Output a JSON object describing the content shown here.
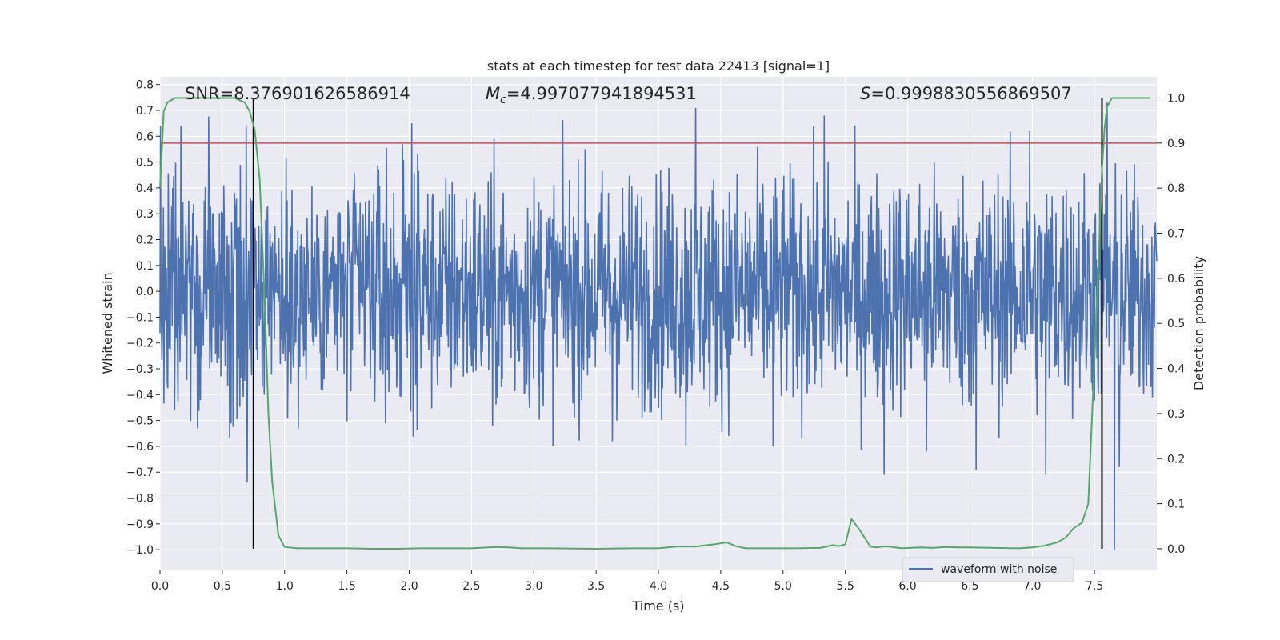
{
  "chart_data": {
    "type": "line",
    "title": "stats at each timestep for test data 22413 [signal=1]",
    "xlabel": "Time (s)",
    "ylabel": "Whitened strain",
    "y2label": "Detection probability",
    "xlim": [
      0.0,
      8.0
    ],
    "ylim": [
      -1.08,
      0.83
    ],
    "y2lim": [
      -0.048,
      1.047
    ],
    "x_ticks": [
      0.0,
      0.5,
      1.0,
      1.5,
      2.0,
      2.5,
      3.0,
      3.5,
      4.0,
      4.5,
      5.0,
      5.5,
      6.0,
      6.5,
      7.0,
      7.5
    ],
    "x_tick_labels": [
      "0.0",
      "0.5",
      "1.0",
      "1.5",
      "2.0",
      "2.5",
      "3.0",
      "3.5",
      "4.0",
      "4.5",
      "5.0",
      "5.5",
      "6.0",
      "6.5",
      "7.0",
      "7.5"
    ],
    "y_ticks": [
      -1.0,
      -0.9,
      -0.8,
      -0.7,
      -0.6,
      -0.5,
      -0.4,
      -0.3,
      -0.2,
      -0.1,
      0.0,
      0.1,
      0.2,
      0.3,
      0.4,
      0.5,
      0.6,
      0.7,
      0.8
    ],
    "y_tick_labels": [
      "−1.0",
      "−0.9",
      "−0.8",
      "−0.7",
      "−0.6",
      "−0.5",
      "−0.4",
      "−0.3",
      "−0.2",
      "−0.1",
      "0.0",
      "0.1",
      "0.2",
      "0.3",
      "0.4",
      "0.5",
      "0.6",
      "0.7",
      "0.8"
    ],
    "y2_ticks": [
      0.0,
      0.1,
      0.2,
      0.3,
      0.4,
      0.5,
      0.6,
      0.7,
      0.8,
      0.9,
      1.0
    ],
    "y2_tick_labels": [
      "0.0",
      "0.1",
      "0.2",
      "0.3",
      "0.4",
      "0.5",
      "0.6",
      "0.7",
      "0.8",
      "0.9",
      "1.0"
    ],
    "grid": true,
    "legend": {
      "entries": [
        "waveform with noise"
      ],
      "placement": "lower-right"
    },
    "annotations": {
      "snr": "SNR=8.376901626586914",
      "mc_symbol": "M",
      "mc_subscript": "c",
      "mc_value": "=4.997077941894531",
      "s_symbol": "S",
      "s_value": "=0.9998830556869507"
    },
    "threshold_line": {
      "y2": 0.9,
      "color": "#c44e52"
    },
    "vlines_x": [
      0.75,
      7.56
    ],
    "waveform": {
      "name": "waveform with noise",
      "color": "#4c72b0",
      "samples": 2048,
      "typical_amplitude": 0.23,
      "peaks": [
        [
          0.1,
          0.4
        ],
        [
          0.17,
          0.64
        ],
        [
          0.3,
          -0.53
        ],
        [
          0.69,
          0.64
        ],
        [
          0.7,
          -0.74
        ],
        [
          2.02,
          0.65
        ],
        [
          2.67,
          -0.52
        ],
        [
          3.63,
          -0.58
        ],
        [
          4.22,
          -0.6
        ],
        [
          4.3,
          0.71
        ],
        [
          4.92,
          -0.6
        ],
        [
          5.33,
          0.68
        ],
        [
          5.81,
          -0.71
        ],
        [
          6.15,
          -0.62
        ],
        [
          6.55,
          -0.69
        ],
        [
          6.98,
          0.62
        ],
        [
          7.11,
          -0.71
        ],
        [
          7.6,
          0.73
        ],
        [
          7.66,
          -1.0
        ],
        [
          7.7,
          -0.68
        ]
      ]
    },
    "series": [
      {
        "name": "detection probability",
        "color": "#55a868",
        "x": [
          0.0,
          0.03,
          0.06,
          0.12,
          0.2,
          0.3,
          0.45,
          0.6,
          0.68,
          0.72,
          0.76,
          0.8,
          0.84,
          0.87,
          0.9,
          0.95,
          1.0,
          1.1,
          1.3,
          1.5,
          1.7,
          1.9,
          2.1,
          2.3,
          2.5,
          2.7,
          2.8,
          2.9,
          3.1,
          3.5,
          3.8,
          4.0,
          4.15,
          4.3,
          4.45,
          4.55,
          4.62,
          4.7,
          4.9,
          5.1,
          5.3,
          5.4,
          5.45,
          5.5,
          5.55,
          5.62,
          5.7,
          5.75,
          5.8,
          5.85,
          5.95,
          6.1,
          6.2,
          6.3,
          6.4,
          6.5,
          6.7,
          6.9,
          7.0,
          7.1,
          7.2,
          7.27,
          7.33,
          7.4,
          7.45,
          7.5,
          7.53,
          7.56,
          7.58,
          7.6,
          7.62,
          7.64,
          7.7,
          7.8,
          7.95
        ],
        "y": [
          0.8,
          0.97,
          0.99,
          1.0,
          1.0,
          1.0,
          1.0,
          1.0,
          0.99,
          0.97,
          0.93,
          0.82,
          0.55,
          0.3,
          0.15,
          0.03,
          0.004,
          0.001,
          0.001,
          0.001,
          0.0,
          0.0,
          0.001,
          0.001,
          0.001,
          0.004,
          0.003,
          0.001,
          0.001,
          0.0,
          0.001,
          0.001,
          0.005,
          0.005,
          0.01,
          0.014,
          0.006,
          0.001,
          0.001,
          0.001,
          0.002,
          0.008,
          0.006,
          0.01,
          0.066,
          0.04,
          0.005,
          0.003,
          0.005,
          0.005,
          0.001,
          0.003,
          0.002,
          0.004,
          0.003,
          0.003,
          0.002,
          0.001,
          0.003,
          0.007,
          0.014,
          0.025,
          0.045,
          0.058,
          0.1,
          0.42,
          0.62,
          0.84,
          0.93,
          0.98,
          0.99,
          1.0,
          1.0,
          1.0,
          1.0
        ]
      }
    ]
  }
}
